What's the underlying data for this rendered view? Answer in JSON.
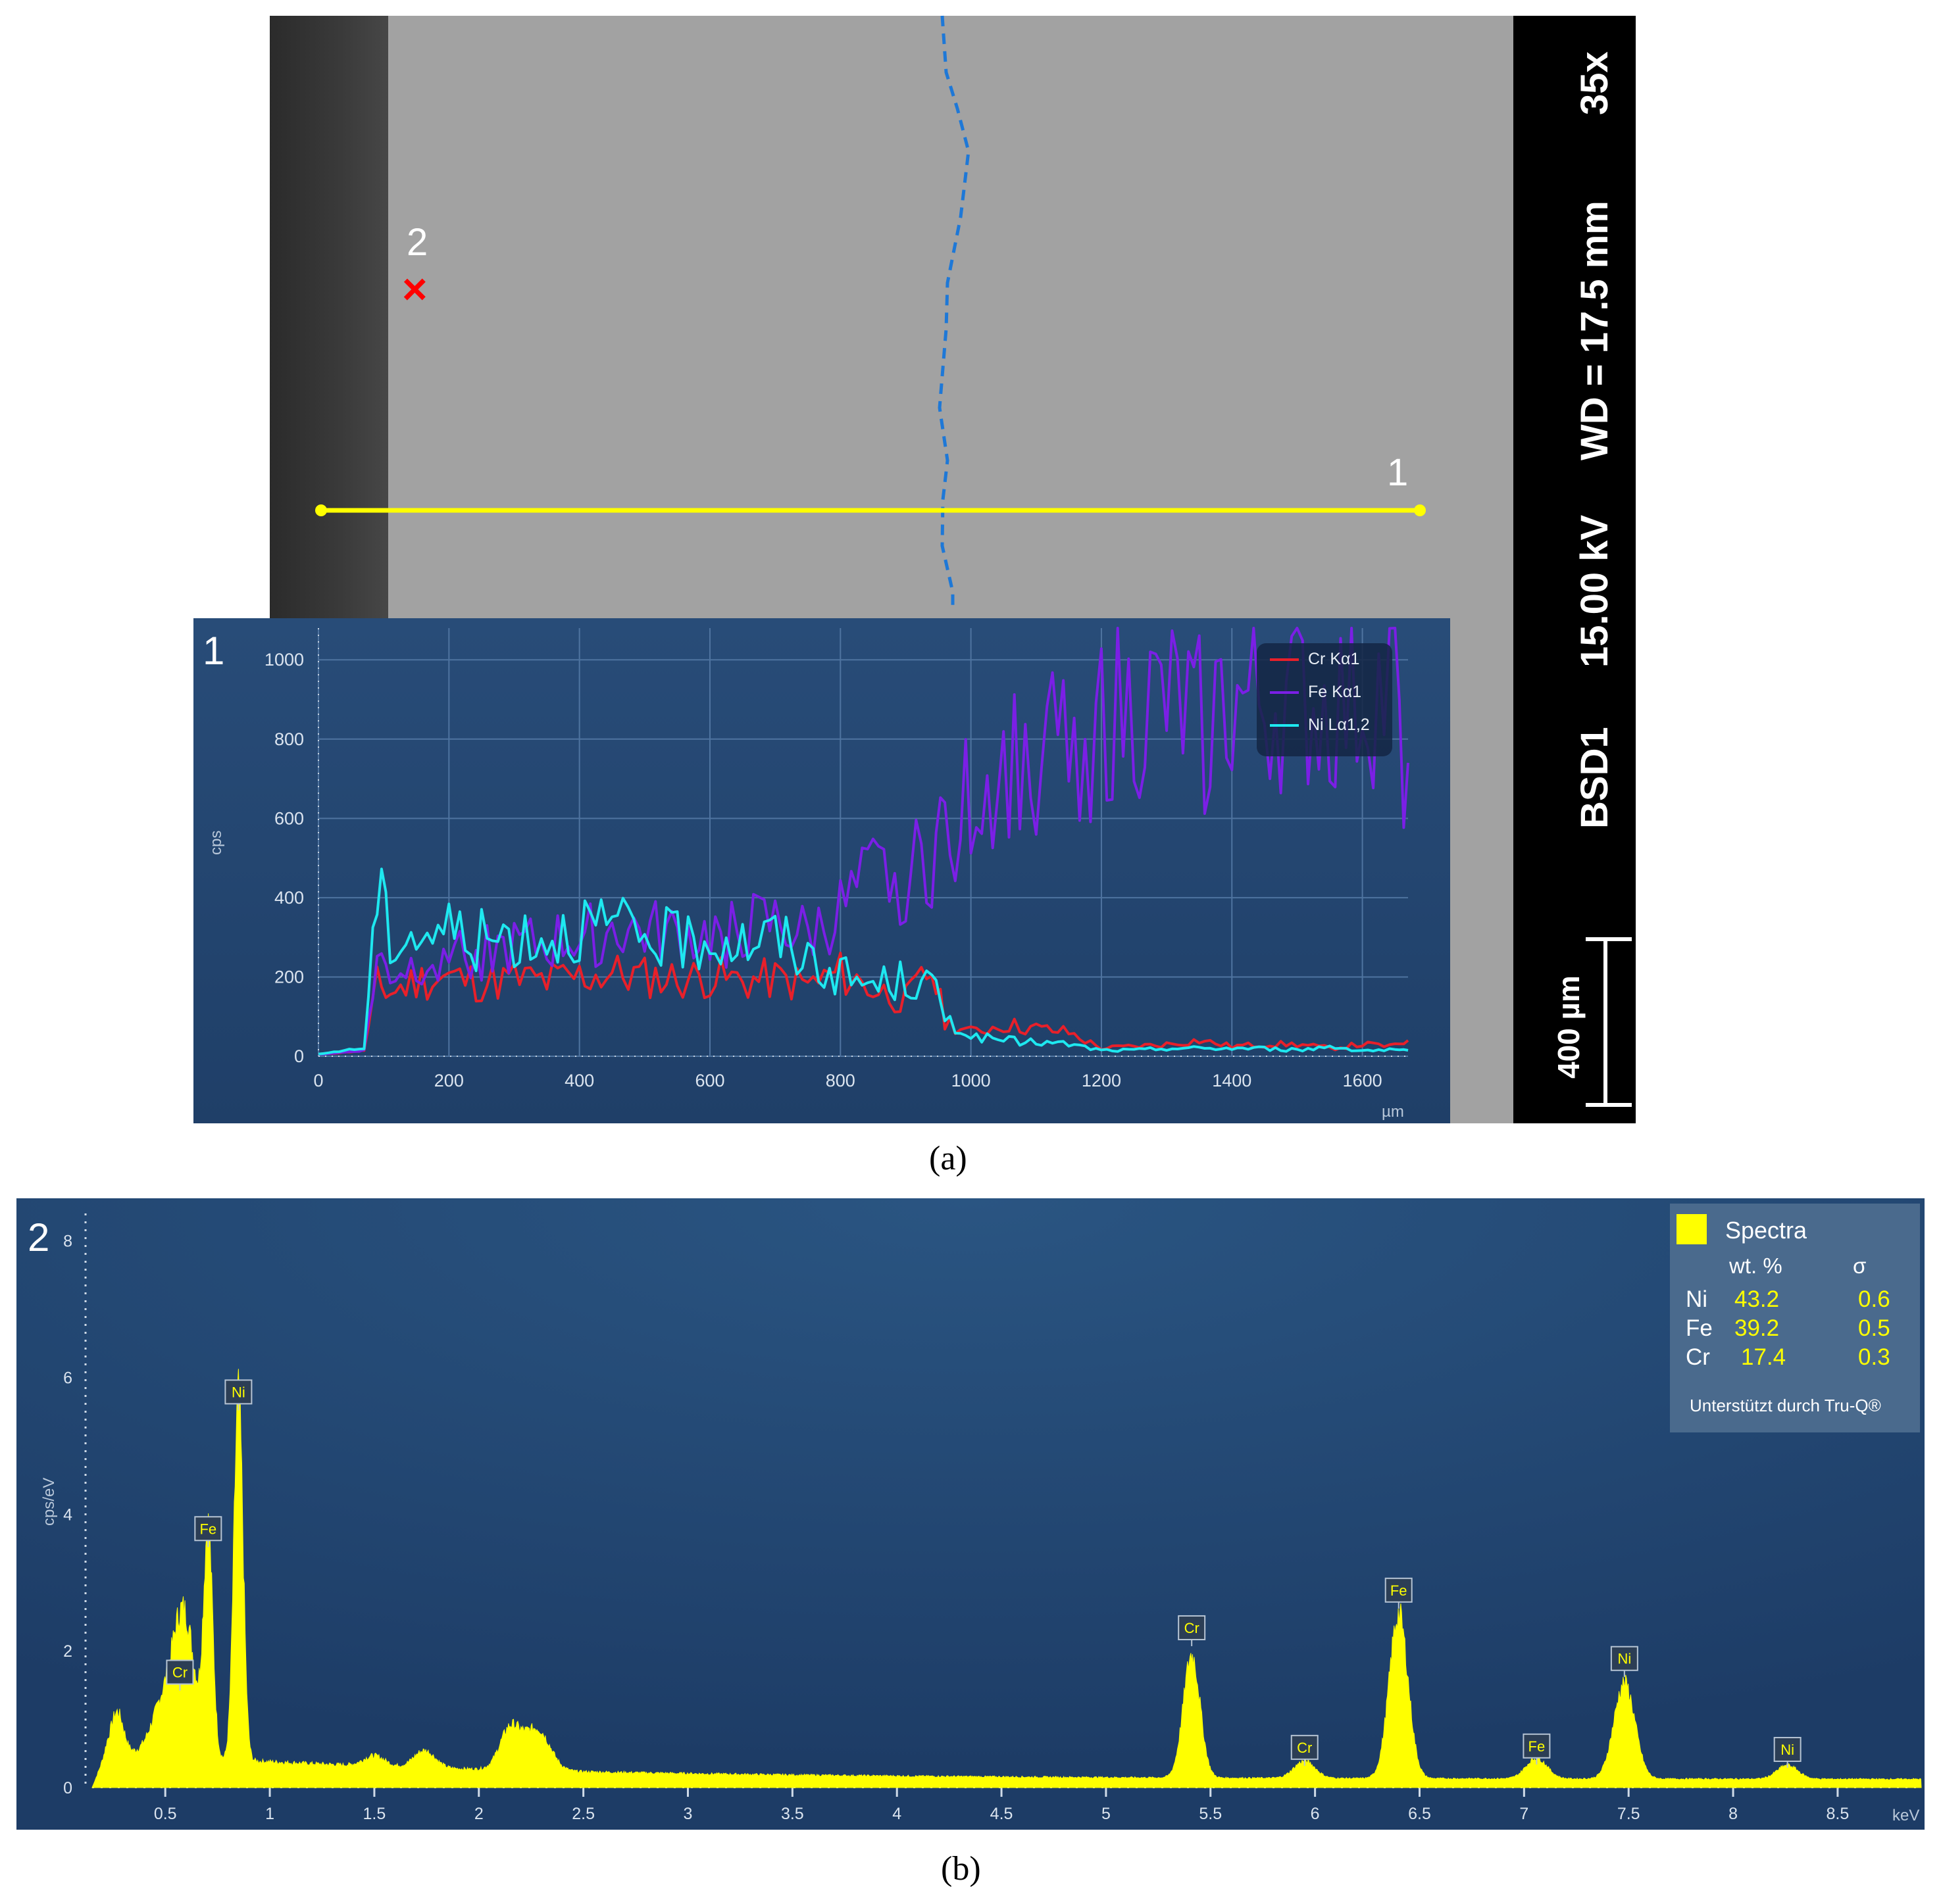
{
  "figure": {
    "caption_a": "(a)",
    "caption_b": "(b)"
  },
  "sem": {
    "info": {
      "magnification": "35x",
      "working_distance": "WD = 17.5 mm",
      "voltage": "15.00 kV",
      "detector": "BSD1",
      "scale_bar": "400 µm"
    },
    "markers": {
      "line_label": "1",
      "point_label": "2",
      "point_symbol": "×"
    },
    "colors": {
      "line_scan": "#ffff00",
      "point_marker": "#ff0000",
      "boundary": "#1e78d7"
    }
  },
  "chart_data": [
    {
      "type": "line",
      "panel_label": "1",
      "xlabel": "µm",
      "ylabel": "cps",
      "xlim": [
        0,
        1670
      ],
      "ylim": [
        0,
        1080
      ],
      "x_ticks": [
        0,
        200,
        400,
        600,
        800,
        1000,
        1200,
        1400,
        1600
      ],
      "y_ticks": [
        0,
        200,
        400,
        600,
        800,
        1000
      ],
      "grid": true,
      "legend_position": "top-right",
      "x": [
        0,
        40,
        70,
        90,
        110,
        150,
        200,
        250,
        300,
        350,
        400,
        450,
        500,
        550,
        600,
        650,
        700,
        750,
        800,
        850,
        900,
        940,
        960,
        1000,
        1050,
        1100,
        1150,
        1200,
        1250,
        1300,
        1350,
        1400,
        1450,
        1500,
        1550,
        1600,
        1650,
        1670
      ],
      "series": [
        {
          "name": "Cr Kα1",
          "color": "#e8202a",
          "values": [
            5,
            10,
            15,
            180,
            160,
            190,
            200,
            185,
            195,
            190,
            200,
            210,
            200,
            195,
            200,
            190,
            195,
            180,
            210,
            170,
            140,
            220,
            90,
            60,
            80,
            70,
            60,
            20,
            25,
            30,
            40,
            25,
            30,
            30,
            20,
            30,
            25,
            40
          ]
        },
        {
          "name": "Fe Kα1",
          "color": "#7b1fe6",
          "values": [
            5,
            10,
            15,
            240,
            210,
            230,
            280,
            260,
            270,
            280,
            300,
            320,
            310,
            300,
            300,
            320,
            330,
            300,
            360,
            440,
            450,
            500,
            580,
            650,
            720,
            760,
            780,
            840,
            860,
            870,
            840,
            870,
            880,
            880,
            860,
            900,
            900,
            740
          ]
        },
        {
          "name": "Ni Lα1,2",
          "color": "#1ee8f0",
          "values": [
            5,
            15,
            20,
            420,
            300,
            310,
            320,
            290,
            310,
            300,
            330,
            320,
            300,
            290,
            300,
            290,
            300,
            250,
            200,
            180,
            190,
            180,
            100,
            50,
            40,
            35,
            30,
            15,
            15,
            20,
            20,
            20,
            20,
            15,
            25,
            15,
            15,
            15
          ]
        }
      ]
    },
    {
      "type": "area",
      "panel_label": "2",
      "xlabel": "keV",
      "ylabel": "cps/eV",
      "xlim": [
        0.15,
        8.9
      ],
      "ylim": [
        0,
        8.4
      ],
      "x_ticks": [
        0.5,
        1,
        1.5,
        2,
        2.5,
        3,
        3.5,
        4,
        4.5,
        5,
        5.5,
        6,
        6.5,
        7,
        7.5,
        8,
        8.5
      ],
      "y_ticks": [
        0,
        2,
        4,
        6,
        8
      ],
      "grid": false,
      "series": [
        {
          "name": "Spectra",
          "color": "#ffff00",
          "peaks": [
            {
              "energy": 0.27,
              "height": 0.6,
              "width": 0.03
            },
            {
              "energy": 0.5,
              "height": 0.85,
              "width": 0.06
            },
            {
              "energy": 0.57,
              "height": 1.2,
              "width": 0.04
            },
            {
              "energy": 0.62,
              "height": 1.1,
              "width": 0.04
            },
            {
              "energy": 0.705,
              "height": 3.3,
              "width": 0.022
            },
            {
              "energy": 0.85,
              "height": 5.3,
              "width": 0.022
            },
            {
              "energy": 1.5,
              "height": 0.15,
              "width": 0.05
            },
            {
              "energy": 1.74,
              "height": 0.25,
              "width": 0.05
            },
            {
              "energy": 2.15,
              "height": 0.6,
              "width": 0.05
            },
            {
              "energy": 2.28,
              "height": 0.6,
              "width": 0.06
            },
            {
              "energy": 5.41,
              "height": 1.8,
              "width": 0.04
            },
            {
              "energy": 5.95,
              "height": 0.25,
              "width": 0.05
            },
            {
              "energy": 6.4,
              "height": 2.4,
              "width": 0.045
            },
            {
              "energy": 7.06,
              "height": 0.3,
              "width": 0.05
            },
            {
              "energy": 7.48,
              "height": 1.4,
              "width": 0.05
            },
            {
              "energy": 8.26,
              "height": 0.2,
              "width": 0.05
            }
          ]
        }
      ],
      "peak_labels": [
        {
          "label": "Cr",
          "energy": 0.57,
          "y": 1.65
        },
        {
          "label": "Fe",
          "energy": 0.705,
          "y": 3.75
        },
        {
          "label": "Ni",
          "energy": 0.85,
          "y": 5.75
        },
        {
          "label": "Cr",
          "energy": 5.41,
          "y": 2.3
        },
        {
          "label": "Cr",
          "energy": 5.95,
          "y": 0.55
        },
        {
          "label": "Fe",
          "energy": 6.4,
          "y": 2.85
        },
        {
          "label": "Fe",
          "energy": 7.06,
          "y": 0.57
        },
        {
          "label": "Ni",
          "energy": 7.48,
          "y": 1.85
        },
        {
          "label": "Ni",
          "energy": 8.26,
          "y": 0.52
        }
      ],
      "quant_table": {
        "title": "Spectra",
        "header_wt": "wt. %",
        "header_sigma": "σ",
        "rows": [
          {
            "element": "Ni",
            "wt": "43.2",
            "sigma": "0.6"
          },
          {
            "element": "Fe",
            "wt": "39.2",
            "sigma": "0.5"
          },
          {
            "element": "Cr",
            "wt": "17.4",
            "sigma": "0.3"
          }
        ],
        "footer": "Unterstützt durch Tru-Q®"
      }
    }
  ]
}
